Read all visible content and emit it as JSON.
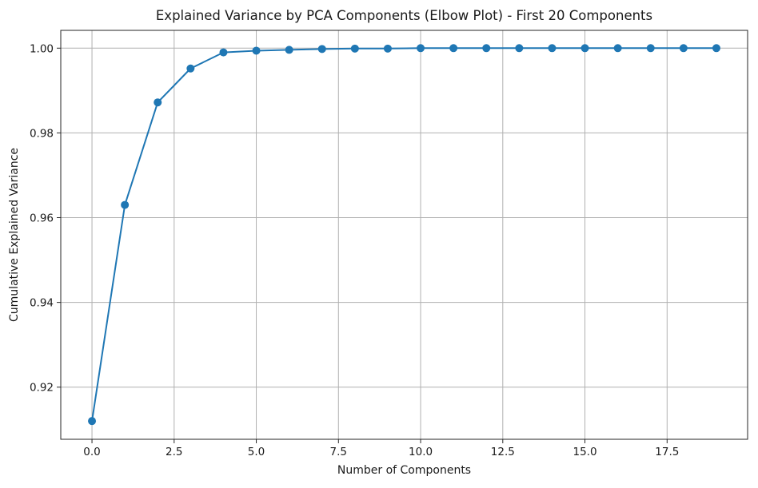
{
  "chart_data": {
    "type": "line",
    "title": "Explained Variance by PCA Components (Elbow Plot) - First 20 Components",
    "xlabel": "Number of Components",
    "ylabel": "Cumulative Explained Variance",
    "xlim": [
      -0.95,
      19.95
    ],
    "ylim": [
      0.9077,
      1.0042
    ],
    "grid": true,
    "x_ticks": [
      0.0,
      2.5,
      5.0,
      7.5,
      10.0,
      12.5,
      15.0,
      17.5
    ],
    "x_tick_labels": [
      "0.0",
      "2.5",
      "5.0",
      "7.5",
      "10.0",
      "12.5",
      "15.0",
      "17.5"
    ],
    "y_ticks": [
      0.92,
      0.94,
      0.96,
      0.98,
      1.0
    ],
    "y_tick_labels": [
      "0.92",
      "0.94",
      "0.96",
      "0.98",
      "1.00"
    ],
    "series": [
      {
        "color": "#1f77b4",
        "marker": "circle",
        "x": [
          0,
          1,
          2,
          3,
          4,
          5,
          6,
          7,
          8,
          9,
          10,
          11,
          12,
          13,
          14,
          15,
          16,
          17,
          18,
          19
        ],
        "y": [
          0.912,
          0.963,
          0.9872,
          0.9952,
          0.999,
          0.9994,
          0.9996,
          0.9998,
          0.9999,
          0.9999,
          1.0,
          1.0,
          1.0,
          1.0,
          1.0,
          1.0,
          1.0,
          1.0,
          1.0,
          1.0
        ]
      }
    ]
  }
}
